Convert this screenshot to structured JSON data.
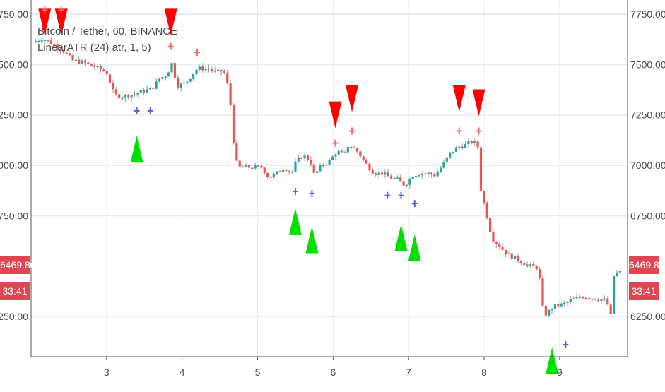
{
  "legend": {
    "symbol_line": "Bitcoin / Tether, 60, BINANCE",
    "indicator_line": "LinearATR (24) atr, 1, 5)"
  },
  "current": {
    "price": "6469.80",
    "countdown": "33:41"
  },
  "colors": {
    "up": "#26a69a",
    "down": "#ef5350",
    "wick": "#9e9e9e",
    "buy_signal": "#00e000",
    "sell_signal": "#ff0000",
    "buy_cross": "#5b5bde",
    "sell_cross": "#ef6b6b",
    "grid": "#e9edf2",
    "tag": "#e04552",
    "axis_text": "#4a4a4a"
  },
  "chart_data": {
    "type": "candlestick",
    "title": "Bitcoin / Tether, 60, BINANCE",
    "indicator": "LinearATR (24) atr, 1, 5)",
    "ylim": [
      6050,
      7820
    ],
    "xlim": [
      2.0,
      9.9
    ],
    "y_ticks": [
      "6250.00",
      "6750.00",
      "7000.00",
      "7250.00",
      "7500.00",
      "7750.00"
    ],
    "y_tick_values": [
      6250,
      6750,
      7000,
      7250,
      7500,
      7750
    ],
    "x_ticks": [
      "3",
      "4",
      "5",
      "6",
      "7",
      "8",
      "9"
    ],
    "x_tick_values": [
      3,
      4,
      5,
      6,
      7,
      8,
      9
    ],
    "grid": true,
    "price_path": [
      [
        2.02,
        7610
      ],
      [
        2.15,
        7630
      ],
      [
        2.3,
        7600
      ],
      [
        2.45,
        7560
      ],
      [
        2.55,
        7520
      ],
      [
        2.7,
        7510
      ],
      [
        2.9,
        7480
      ],
      [
        3.0,
        7460
      ],
      [
        3.1,
        7350
      ],
      [
        3.2,
        7340
      ],
      [
        3.35,
        7350
      ],
      [
        3.5,
        7370
      ],
      [
        3.6,
        7380
      ],
      [
        3.7,
        7430
      ],
      [
        3.8,
        7450
      ],
      [
        3.88,
        7520
      ],
      [
        3.92,
        7390
      ],
      [
        4.05,
        7410
      ],
      [
        4.2,
        7480
      ],
      [
        4.35,
        7480
      ],
      [
        4.45,
        7460
      ],
      [
        4.55,
        7470
      ],
      [
        4.6,
        7400
      ],
      [
        4.65,
        7280
      ],
      [
        4.7,
        7030
      ],
      [
        4.75,
        6990
      ],
      [
        4.9,
        6990
      ],
      [
        5.05,
        6990
      ],
      [
        5.15,
        6940
      ],
      [
        5.25,
        6960
      ],
      [
        5.35,
        6990
      ],
      [
        5.45,
        6960
      ],
      [
        5.5,
        7010
      ],
      [
        5.6,
        7050
      ],
      [
        5.7,
        7020
      ],
      [
        5.75,
        6950
      ],
      [
        5.85,
        7000
      ],
      [
        5.95,
        7020
      ],
      [
        6.05,
        7070
      ],
      [
        6.15,
        7050
      ],
      [
        6.2,
        7100
      ],
      [
        6.3,
        7080
      ],
      [
        6.45,
        7000
      ],
      [
        6.55,
        6960
      ],
      [
        6.65,
        6960
      ],
      [
        6.75,
        6940
      ],
      [
        6.85,
        6930
      ],
      [
        6.95,
        6900
      ],
      [
        7.05,
        6950
      ],
      [
        7.15,
        6960
      ],
      [
        7.25,
        6960
      ],
      [
        7.35,
        6950
      ],
      [
        7.45,
        7000
      ],
      [
        7.55,
        7060
      ],
      [
        7.65,
        7090
      ],
      [
        7.75,
        7100
      ],
      [
        7.85,
        7120
      ],
      [
        7.92,
        7090
      ],
      [
        7.95,
        6890
      ],
      [
        8.05,
        6730
      ],
      [
        8.1,
        6640
      ],
      [
        8.2,
        6600
      ],
      [
        8.3,
        6560
      ],
      [
        8.4,
        6540
      ],
      [
        8.5,
        6520
      ],
      [
        8.6,
        6500
      ],
      [
        8.72,
        6490
      ],
      [
        8.78,
        6280
      ],
      [
        8.82,
        6260
      ],
      [
        8.92,
        6300
      ],
      [
        9.05,
        6310
      ],
      [
        9.15,
        6330
      ],
      [
        9.3,
        6350
      ],
      [
        9.45,
        6340
      ],
      [
        9.62,
        6330
      ],
      [
        9.68,
        6250
      ],
      [
        9.72,
        6460
      ],
      [
        9.8,
        6470
      ]
    ],
    "sell_signals": [
      {
        "x": 2.18,
        "y": 7710
      },
      {
        "x": 2.4,
        "y": 7710
      },
      {
        "x": 3.85,
        "y": 7710
      },
      {
        "x": 6.03,
        "y": 7250
      },
      {
        "x": 6.25,
        "y": 7330
      },
      {
        "x": 7.67,
        "y": 7330
      },
      {
        "x": 7.93,
        "y": 7310
      }
    ],
    "sell_crosses": [
      {
        "x": 2.18,
        "y": 7770
      },
      {
        "x": 2.4,
        "y": 7770
      },
      {
        "x": 3.85,
        "y": 7590
      },
      {
        "x": 4.2,
        "y": 7560
      },
      {
        "x": 6.03,
        "y": 7110
      },
      {
        "x": 6.25,
        "y": 7170
      },
      {
        "x": 7.67,
        "y": 7170
      },
      {
        "x": 7.93,
        "y": 7170
      }
    ],
    "buy_signals": [
      {
        "x": 3.4,
        "y": 7080
      },
      {
        "x": 5.5,
        "y": 6720
      },
      {
        "x": 5.72,
        "y": 6630
      },
      {
        "x": 6.9,
        "y": 6640
      },
      {
        "x": 7.08,
        "y": 6590
      },
      {
        "x": 8.9,
        "y": 6030
      }
    ],
    "buy_crosses": [
      {
        "x": 3.4,
        "y": 7270
      },
      {
        "x": 3.58,
        "y": 7270
      },
      {
        "x": 5.5,
        "y": 6870
      },
      {
        "x": 5.72,
        "y": 6860
      },
      {
        "x": 6.72,
        "y": 6850
      },
      {
        "x": 6.9,
        "y": 6850
      },
      {
        "x": 7.08,
        "y": 6810
      },
      {
        "x": 9.08,
        "y": 6110
      }
    ]
  }
}
